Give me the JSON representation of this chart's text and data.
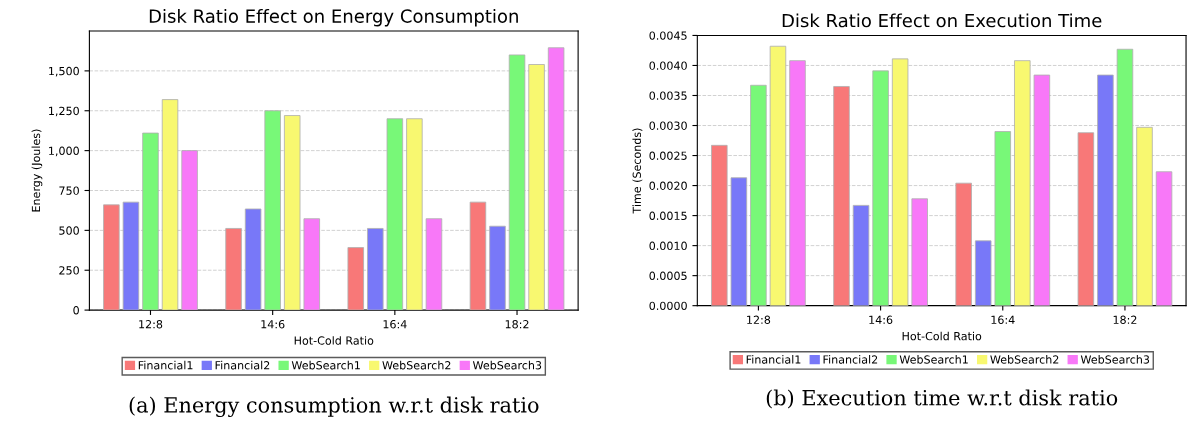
{
  "chart_data": [
    {
      "type": "bar",
      "title": "Disk Ratio Effect on Energy Consumption",
      "xlabel": "Hot-Cold Ratio",
      "ylabel": "Energy (Joules)",
      "categories": [
        "12:8",
        "14:6",
        "16:4",
        "18:2"
      ],
      "series": [
        {
          "name": "Financial1",
          "color": "#f87878",
          "values": [
            660,
            512,
            392,
            677
          ]
        },
        {
          "name": "Financial2",
          "color": "#7878f8",
          "values": [
            677,
            634,
            512,
            526
          ]
        },
        {
          "name": "WebSearch1",
          "color": "#78f878",
          "values": [
            1110,
            1250,
            1200,
            1600
          ]
        },
        {
          "name": "WebSearch2",
          "color": "#f8f870",
          "values": [
            1320,
            1220,
            1200,
            1540
          ]
        },
        {
          "name": "WebSearch3",
          "color": "#f878f8",
          "values": [
            1000,
            573,
            573,
            1645
          ]
        }
      ],
      "ylim": [
        0,
        1750
      ],
      "yticks": [
        0,
        250,
        500,
        750,
        {
          "value": 1000,
          "label": "1,000"
        },
        {
          "value": 1250,
          "label": "1,250"
        },
        {
          "value": 1500,
          "label": "1,500"
        }
      ],
      "grid": "y",
      "legend": "bottom",
      "annotations": [
        "(a) Energy consumption w.r.t disk ratio"
      ]
    },
    {
      "type": "bar",
      "title": "Disk Ratio Effect on Execution Time",
      "xlabel": "Hot-Cold Ratio",
      "ylabel": "Time (Seconds)",
      "categories": [
        "12:8",
        "14:6",
        "16:4",
        "18:2"
      ],
      "series": [
        {
          "name": "Financial1",
          "color": "#f87878",
          "values": [
            0.00267,
            0.00365,
            0.00204,
            0.00288
          ]
        },
        {
          "name": "Financial2",
          "color": "#7878f8",
          "values": [
            0.00213,
            0.00167,
            0.00108,
            0.00384
          ]
        },
        {
          "name": "WebSearch1",
          "color": "#78f878",
          "values": [
            0.00367,
            0.00391,
            0.0029,
            0.00427
          ]
        },
        {
          "name": "WebSearch2",
          "color": "#f8f870",
          "values": [
            0.00432,
            0.00411,
            0.00408,
            0.00297
          ]
        },
        {
          "name": "WebSearch3",
          "color": "#f878f8",
          "values": [
            0.00408,
            0.00178,
            0.00384,
            0.00223
          ]
        }
      ],
      "ylim": [
        0,
        0.0045
      ],
      "yticks": [
        {
          "value": 0,
          "label": "0.0000"
        },
        {
          "value": 0.0005,
          "label": "0.0005"
        },
        {
          "value": 0.001,
          "label": "0.0010"
        },
        {
          "value": 0.0015,
          "label": "0.0015"
        },
        {
          "value": 0.002,
          "label": "0.0020"
        },
        {
          "value": 0.0025,
          "label": "0.0025"
        },
        {
          "value": 0.003,
          "label": "0.0030"
        },
        {
          "value": 0.0035,
          "label": "0.0035"
        },
        {
          "value": 0.004,
          "label": "0.0040"
        },
        {
          "value": 0.0045,
          "label": "0.0045"
        }
      ],
      "grid": "y",
      "legend": "bottom",
      "annotations": [
        "(b) Execution time w.r.t disk ratio"
      ]
    }
  ]
}
